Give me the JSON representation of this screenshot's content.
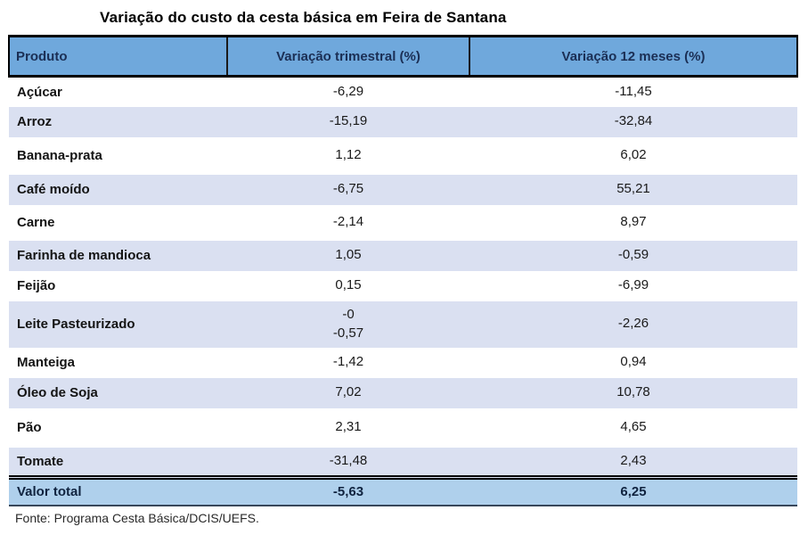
{
  "title": "Variação do custo da cesta básica em Feira de Santana",
  "colors": {
    "header_bg": "#6FA8DC",
    "stripe_bg": "#DAE0F1",
    "total_bg": "#AFD0EC",
    "border": "#000000"
  },
  "table": {
    "columns": [
      "Produto",
      "Variação trimestral (%)",
      "Variação 12 meses (%)"
    ],
    "rows": [
      {
        "product": "Açúcar",
        "trimestral": "-6,29",
        "twelve": "-11,45"
      },
      {
        "product": "Arroz",
        "trimestral": "-15,19",
        "twelve": "-32,84"
      },
      {
        "product": "Banana-prata",
        "trimestral": "1,12",
        "twelve": "6,02"
      },
      {
        "product": "Café moído",
        "trimestral": "-6,75",
        "twelve": "55,21"
      },
      {
        "product": "Carne",
        "trimestral": "-2,14",
        "twelve": "8,97"
      },
      {
        "product": "Farinha de mandioca",
        "trimestral": "1,05",
        "twelve": "-0,59"
      },
      {
        "product": "Feijão",
        "trimestral": "0,15",
        "twelve": "-6,99"
      },
      {
        "product": "Leite Pasteurizado",
        "trimestral": "-0\n-0,57",
        "twelve": "-2,26"
      },
      {
        "product": "Manteiga",
        "trimestral": "-1,42",
        "twelve": "0,94"
      },
      {
        "product": "Óleo de Soja",
        "trimestral": "7,02",
        "twelve": "10,78"
      },
      {
        "product": "Pão",
        "trimestral": "2,31",
        "twelve": "4,65"
      },
      {
        "product": "Tomate",
        "trimestral": "-31,48",
        "twelve": "2,43"
      }
    ],
    "total": {
      "product": "Valor total",
      "trimestral": "-5,63",
      "twelve": "6,25"
    }
  },
  "footer": {
    "source": "Fonte: Programa Cesta Básica/DCIS/UEFS."
  },
  "chart_data": {
    "type": "table",
    "title": "Variação do custo da cesta básica em Feira de Santana",
    "columns": [
      "Produto",
      "Variação trimestral (%)",
      "Variação 12 meses (%)"
    ],
    "rows": [
      {
        "produto": "Açúcar",
        "variacao_trimestral_pct": -6.29,
        "variacao_12_meses_pct": -11.45
      },
      {
        "produto": "Arroz",
        "variacao_trimestral_pct": -15.19,
        "variacao_12_meses_pct": -32.84
      },
      {
        "produto": "Banana-prata",
        "variacao_trimestral_pct": 1.12,
        "variacao_12_meses_pct": 6.02
      },
      {
        "produto": "Café moído",
        "variacao_trimestral_pct": -6.75,
        "variacao_12_meses_pct": 55.21
      },
      {
        "produto": "Carne",
        "variacao_trimestral_pct": -2.14,
        "variacao_12_meses_pct": 8.97
      },
      {
        "produto": "Farinha de mandioca",
        "variacao_trimestral_pct": 1.05,
        "variacao_12_meses_pct": -0.59
      },
      {
        "produto": "Feijão",
        "variacao_trimestral_pct": 0.15,
        "variacao_12_meses_pct": -6.99
      },
      {
        "produto": "Leite Pasteurizado",
        "variacao_trimestral_pct": -0.57,
        "variacao_12_meses_pct": -2.26,
        "display_note": "trimestral shown on two lines: -0 / -0,57"
      },
      {
        "produto": "Manteiga",
        "variacao_trimestral_pct": -1.42,
        "variacao_12_meses_pct": 0.94
      },
      {
        "produto": "Óleo de Soja",
        "variacao_trimestral_pct": 7.02,
        "variacao_12_meses_pct": 10.78
      },
      {
        "produto": "Pão",
        "variacao_trimestral_pct": 2.31,
        "variacao_12_meses_pct": 4.65
      },
      {
        "produto": "Tomate",
        "variacao_trimestral_pct": -31.48,
        "variacao_12_meses_pct": 2.43
      }
    ],
    "total_row": {
      "produto": "Valor total",
      "variacao_trimestral_pct": -5.63,
      "variacao_12_meses_pct": 6.25
    },
    "source": "Fonte: Programa Cesta Básica/DCIS/UEFS.",
    "layout_hints": {
      "zebra_striping": true,
      "header_fill": "#6FA8DC",
      "values_centered": true
    }
  }
}
